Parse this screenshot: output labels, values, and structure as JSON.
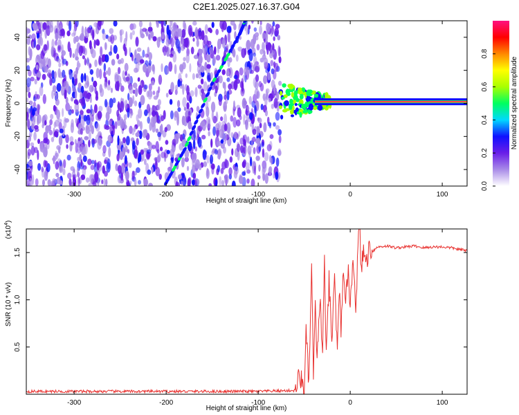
{
  "page_title": "C2E1.2025.027.16.37.G04",
  "colors": {
    "signal_line": "#e8302e",
    "axes": "#000000",
    "background": "#ffffff"
  },
  "chart_data": [
    {
      "type": "heatmap",
      "title": "C2E1.2025.027.16.37.G04",
      "xlabel": "Height of straight line (km)",
      "ylabel": "Frequency (Hz)",
      "xlim": [
        -352,
        127
      ],
      "ylim": [
        -50,
        50
      ],
      "xticks": [
        -300,
        -200,
        -100,
        0,
        100
      ],
      "yticks": [
        -40,
        -20,
        0,
        20,
        40
      ],
      "colorbar": {
        "label": "Normalized spectral amplitude",
        "range": [
          0,
          1
        ],
        "ticks": [
          0.0,
          0.2,
          0.4,
          0.6,
          0.8
        ],
        "colormap": [
          "#ffffff",
          "#a98be8",
          "#6a1ee8",
          "#1010ff",
          "#00d8ff",
          "#00ff60",
          "#a8ff00",
          "#ffff00",
          "#ff8800",
          "#ff0000",
          "#ff1080"
        ]
      },
      "features": {
        "noise_region_x": [
          -352,
          -76
        ],
        "chirp_line": [
          [
            -200,
            -48
          ],
          [
            -180,
            -28
          ],
          [
            -150,
            12
          ],
          [
            -120,
            42
          ],
          [
            -114,
            50
          ]
        ],
        "carrier_frequency_hz": 1,
        "carrier_start_x": -76,
        "turbulent_zone_x": [
          -76,
          -20
        ]
      },
      "grid": false
    },
    {
      "type": "line",
      "xlabel": "Height of straight line (km)",
      "ylabel": "SNR (10 * v/v)",
      "y_multiplier": "(x10",
      "y_multiplier_exp": "4",
      "y_multiplier_close": ")",
      "xlim": [
        -352,
        127
      ],
      "ylim": [
        0,
        1.75
      ],
      "xticks": [
        -300,
        -200,
        -100,
        0,
        100
      ],
      "yticks": [
        0.5,
        1.0,
        1.5
      ],
      "series": [
        {
          "x": [
            -352,
            -300,
            -250,
            -200,
            -150,
            -100,
            -60,
            -55,
            -50,
            -48,
            -45,
            -42,
            -40,
            -38,
            -36,
            -33,
            -30,
            -28,
            -26,
            -23,
            -20,
            -17,
            -14,
            -12,
            -10,
            -8,
            -5,
            -2,
            0,
            3,
            6,
            9,
            10,
            12,
            15,
            18,
            20,
            25,
            30,
            40,
            50,
            60,
            70,
            80,
            90,
            100,
            110,
            120,
            127
          ],
          "y": [
            0.03,
            0.03,
            0.03,
            0.03,
            0.03,
            0.03,
            0.04,
            0.2,
            0.05,
            0.65,
            0.1,
            1.3,
            0.25,
            0.9,
            0.3,
            1.05,
            0.4,
            1.45,
            0.35,
            1.2,
            0.5,
            1.3,
            0.4,
            1.1,
            0.7,
            1.25,
            0.9,
            1.45,
            0.85,
            1.5,
            0.95,
            1.65,
            1.8,
            1.35,
            1.5,
            1.4,
            1.55,
            1.52,
            1.56,
            1.57,
            1.55,
            1.56,
            1.57,
            1.55,
            1.56,
            1.56,
            1.55,
            1.53,
            1.52
          ]
        }
      ],
      "grid": false
    }
  ]
}
